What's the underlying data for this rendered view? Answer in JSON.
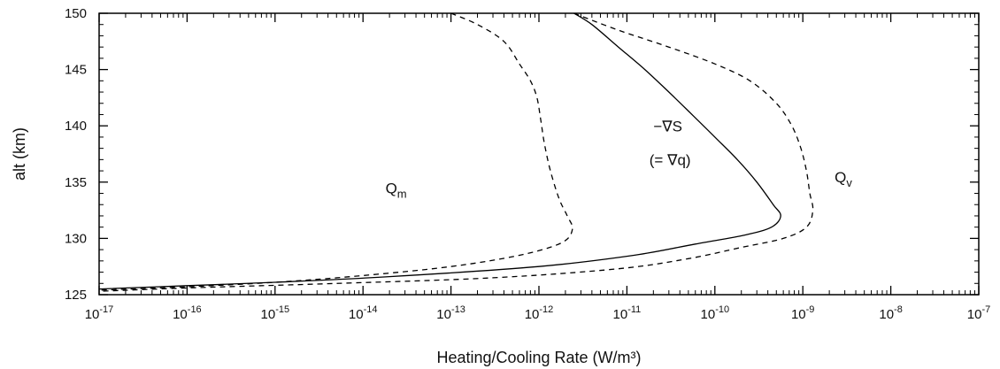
{
  "chart_data": {
    "type": "line",
    "title": "",
    "xlabel": "Heating/Cooling Rate (W/m³)",
    "ylabel": "alt (km)",
    "x_scale": "log",
    "xlim": [
      1e-17,
      1e-07
    ],
    "ylim": [
      125,
      150
    ],
    "x_tick_labels": [
      {
        "value": 1e-17,
        "base": "10",
        "exp": "-17"
      },
      {
        "value": 1e-16,
        "base": "10",
        "exp": "-16"
      },
      {
        "value": 1e-15,
        "base": "10",
        "exp": "-15"
      },
      {
        "value": 1e-14,
        "base": "10",
        "exp": "-14"
      },
      {
        "value": 1e-13,
        "base": "10",
        "exp": "-13"
      },
      {
        "value": 1e-12,
        "base": "10",
        "exp": "-12"
      },
      {
        "value": 1e-11,
        "base": "10",
        "exp": "-11"
      },
      {
        "value": 1e-10,
        "base": "10",
        "exp": "-10"
      },
      {
        "value": 1e-09,
        "base": "10",
        "exp": "-9"
      },
      {
        "value": 1e-08,
        "base": "10",
        "exp": "-8"
      },
      {
        "value": 1e-07,
        "base": "10",
        "exp": "-7"
      }
    ],
    "y_ticks": [
      125,
      130,
      135,
      140,
      145,
      150
    ],
    "grid": false,
    "series": [
      {
        "name": "Q_m",
        "style": "dashed",
        "points": [
          [
            1e-13,
            150
          ],
          [
            2e-13,
            149
          ],
          [
            4e-13,
            147.5
          ],
          [
            6e-13,
            145.5
          ],
          [
            8e-13,
            144
          ],
          [
            9.5e-13,
            142.5
          ],
          [
            1.05e-12,
            140.5
          ],
          [
            1.15e-12,
            138.5
          ],
          [
            1.35e-12,
            136
          ],
          [
            1.7e-12,
            133.5
          ],
          [
            2.1e-12,
            132
          ],
          [
            2.4e-12,
            130.8
          ],
          [
            1.8e-12,
            129.6
          ],
          [
            6e-13,
            128.5
          ],
          [
            1e-13,
            127.5
          ],
          [
            1e-14,
            126.7
          ],
          [
            1e-15,
            126.1
          ],
          [
            1e-16,
            125.7
          ],
          [
            1e-17,
            125.4
          ]
        ]
      },
      {
        "name": "-∇S",
        "style": "solid",
        "points": [
          [
            2.5e-12,
            150
          ],
          [
            4e-12,
            149
          ],
          [
            8e-12,
            147
          ],
          [
            1.6e-11,
            145
          ],
          [
            3e-11,
            143
          ],
          [
            5.5e-11,
            141
          ],
          [
            1e-10,
            139
          ],
          [
            1.8e-10,
            137
          ],
          [
            3e-10,
            135
          ],
          [
            4.6e-10,
            133
          ],
          [
            5.6e-10,
            132
          ],
          [
            4.4e-10,
            131
          ],
          [
            2.2e-10,
            130.3
          ],
          [
            6e-11,
            129.5
          ],
          [
            1.2e-11,
            128.5
          ],
          [
            1e-12,
            127.5
          ],
          [
            2e-14,
            126.6
          ],
          [
            1e-15,
            126.1
          ],
          [
            1e-16,
            125.8
          ],
          [
            1e-17,
            125.5
          ]
        ]
      },
      {
        "name": "Q_v",
        "style": "dashed",
        "points": [
          [
            2.5e-12,
            150
          ],
          [
            8e-12,
            148.5
          ],
          [
            3e-11,
            147
          ],
          [
            1e-10,
            145.5
          ],
          [
            2.5e-10,
            144
          ],
          [
            5e-10,
            142
          ],
          [
            7.5e-10,
            140
          ],
          [
            9.5e-10,
            138
          ],
          [
            1.1e-09,
            136
          ],
          [
            1.2e-09,
            134
          ],
          [
            1.3e-09,
            132.5
          ],
          [
            1.1e-09,
            131
          ],
          [
            6e-10,
            130
          ],
          [
            2e-10,
            129.2
          ],
          [
            5e-11,
            128.2
          ],
          [
            8e-12,
            127.3
          ],
          [
            3e-13,
            126.5
          ],
          [
            5e-15,
            126
          ],
          [
            1e-16,
            125.6
          ],
          [
            1e-17,
            125.3
          ]
        ]
      }
    ],
    "annotations": [
      {
        "id": "qm",
        "kind": "sub",
        "main": "Q",
        "sub": "m",
        "x": 1.8e-14,
        "y": 134.0
      },
      {
        "id": "qv",
        "kind": "sub",
        "main": "Q",
        "sub": "v",
        "x": 2.3e-09,
        "y": 135.0
      },
      {
        "id": "grad-s",
        "kind": "text",
        "text": "−∇S",
        "x": 2e-11,
        "y": 139.5
      },
      {
        "id": "grad-q",
        "kind": "text",
        "text": "(= ∇q)",
        "x": 1.8e-11,
        "y": 136.5
      }
    ]
  }
}
